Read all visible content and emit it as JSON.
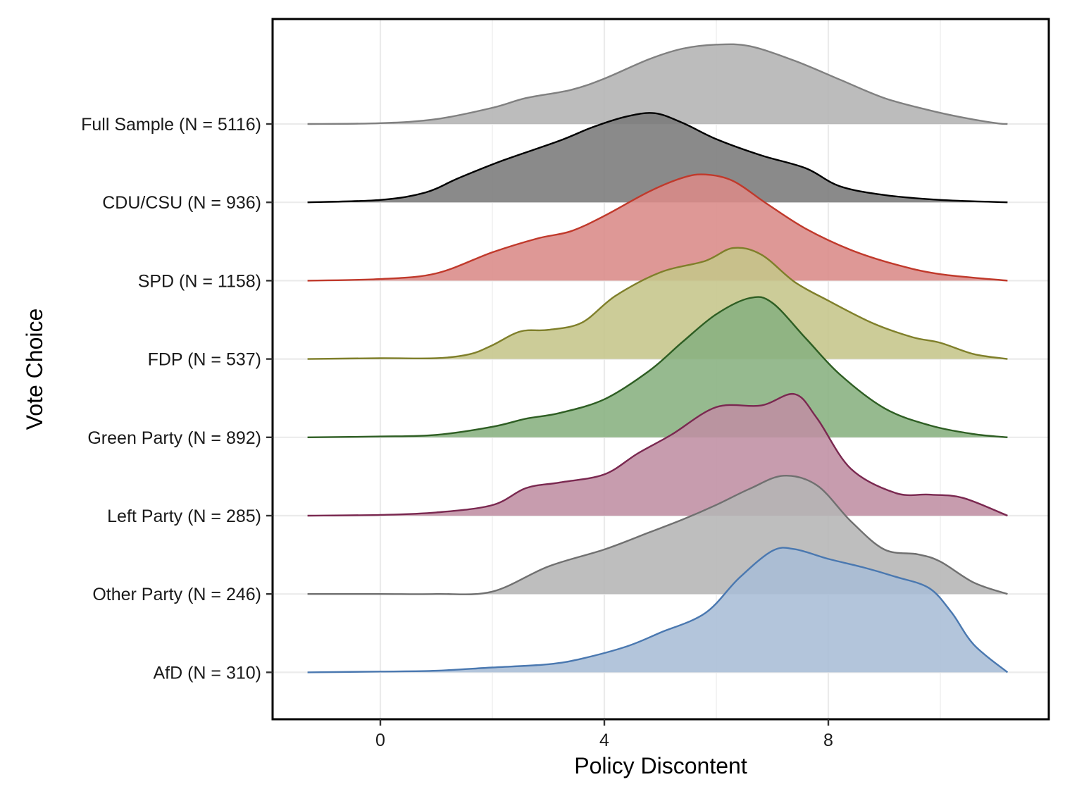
{
  "chart_data": {
    "type": "ridgeline",
    "title": "",
    "xlabel": "Policy Discontent",
    "ylabel": "Vote Choice",
    "x_ticks": [
      0,
      4,
      8
    ],
    "xlim": [
      -1.9,
      11.7
    ],
    "x_range": [
      -1.3,
      11.2
    ],
    "grid": true,
    "series": [
      {
        "name": "Full Sample (N = 5116)",
        "color": "#808080",
        "fill": "#b3b3b3",
        "points": [
          [
            -1.3,
            0
          ],
          [
            0,
            0.01
          ],
          [
            1,
            0.06
          ],
          [
            2,
            0.2
          ],
          [
            2.6,
            0.32
          ],
          [
            3.4,
            0.42
          ],
          [
            4,
            0.56
          ],
          [
            4.8,
            0.8
          ],
          [
            5.4,
            0.93
          ],
          [
            6,
            0.98
          ],
          [
            6.6,
            0.96
          ],
          [
            7.4,
            0.78
          ],
          [
            8.2,
            0.55
          ],
          [
            9,
            0.32
          ],
          [
            9.8,
            0.17
          ],
          [
            10.4,
            0.08
          ],
          [
            11,
            0.01
          ],
          [
            11.2,
            0
          ]
        ]
      },
      {
        "name": "CDU/CSU (N = 936)",
        "color": "#000000",
        "fill": "#7a7a7a",
        "points": [
          [
            -1.3,
            0
          ],
          [
            0,
            0.03
          ],
          [
            0.8,
            0.12
          ],
          [
            1.4,
            0.3
          ],
          [
            2.2,
            0.52
          ],
          [
            3.2,
            0.76
          ],
          [
            3.8,
            0.93
          ],
          [
            4.4,
            1.06
          ],
          [
            4.9,
            1.1
          ],
          [
            5.4,
            0.98
          ],
          [
            6,
            0.78
          ],
          [
            6.8,
            0.58
          ],
          [
            7.6,
            0.42
          ],
          [
            8.2,
            0.2
          ],
          [
            9,
            0.09
          ],
          [
            10,
            0.03
          ],
          [
            11.2,
            0
          ]
        ]
      },
      {
        "name": "SPD (N = 1158)",
        "color": "#c0392b",
        "fill": "#d98a88",
        "points": [
          [
            -1.3,
            0
          ],
          [
            0,
            0.02
          ],
          [
            1,
            0.09
          ],
          [
            2,
            0.35
          ],
          [
            2.8,
            0.52
          ],
          [
            3.4,
            0.61
          ],
          [
            4,
            0.8
          ],
          [
            4.8,
            1.1
          ],
          [
            5.4,
            1.27
          ],
          [
            5.8,
            1.31
          ],
          [
            6.3,
            1.23
          ],
          [
            6.9,
            0.95
          ],
          [
            7.6,
            0.64
          ],
          [
            8.4,
            0.38
          ],
          [
            9.2,
            0.2
          ],
          [
            10,
            0.08
          ],
          [
            11.2,
            0
          ]
        ]
      },
      {
        "name": "FDP (N = 537)",
        "color": "#7f7f2a",
        "fill": "#c5c58a",
        "points": [
          [
            -1.3,
            0
          ],
          [
            0,
            0.01
          ],
          [
            1,
            0.01
          ],
          [
            1.6,
            0.06
          ],
          [
            2,
            0.17
          ],
          [
            2.5,
            0.34
          ],
          [
            3,
            0.36
          ],
          [
            3.6,
            0.45
          ],
          [
            4.2,
            0.78
          ],
          [
            5,
            1.07
          ],
          [
            5.8,
            1.21
          ],
          [
            6.3,
            1.37
          ],
          [
            6.8,
            1.29
          ],
          [
            7.4,
            0.95
          ],
          [
            8,
            0.72
          ],
          [
            8.8,
            0.44
          ],
          [
            9.5,
            0.27
          ],
          [
            10,
            0.2
          ],
          [
            10.6,
            0.06
          ],
          [
            11.2,
            0
          ]
        ]
      },
      {
        "name": "Green Party (N = 892)",
        "color": "#2e5e23",
        "fill": "#87b17f",
        "points": [
          [
            -1.3,
            0
          ],
          [
            0,
            0.01
          ],
          [
            1,
            0.03
          ],
          [
            2,
            0.13
          ],
          [
            2.6,
            0.23
          ],
          [
            3.2,
            0.3
          ],
          [
            4,
            0.47
          ],
          [
            4.8,
            0.82
          ],
          [
            5.4,
            1.18
          ],
          [
            6,
            1.52
          ],
          [
            6.6,
            1.72
          ],
          [
            7,
            1.66
          ],
          [
            7.6,
            1.22
          ],
          [
            8.2,
            0.78
          ],
          [
            9,
            0.36
          ],
          [
            9.8,
            0.15
          ],
          [
            10.6,
            0.04
          ],
          [
            11.2,
            0
          ]
        ]
      },
      {
        "name": "Left Party (N = 285)",
        "color": "#7a2850",
        "fill": "#bf8ea3",
        "points": [
          [
            -1.3,
            0
          ],
          [
            0,
            0.01
          ],
          [
            1,
            0.04
          ],
          [
            2,
            0.13
          ],
          [
            2.6,
            0.34
          ],
          [
            3.2,
            0.41
          ],
          [
            4,
            0.51
          ],
          [
            4.6,
            0.77
          ],
          [
            5.2,
            1.0
          ],
          [
            6,
            1.34
          ],
          [
            6.8,
            1.36
          ],
          [
            7.4,
            1.5
          ],
          [
            7.8,
            1.2
          ],
          [
            8.4,
            0.58
          ],
          [
            9.2,
            0.28
          ],
          [
            9.8,
            0.26
          ],
          [
            10.4,
            0.22
          ],
          [
            11.2,
            0
          ]
        ]
      },
      {
        "name": "Other Party (N = 246)",
        "color": "#707070",
        "fill": "#b5b5b5",
        "points": [
          [
            -1.3,
            0
          ],
          [
            0,
            0
          ],
          [
            1,
            0
          ],
          [
            2,
            0.03
          ],
          [
            3,
            0.34
          ],
          [
            4,
            0.55
          ],
          [
            4.8,
            0.76
          ],
          [
            5.4,
            0.92
          ],
          [
            6,
            1.1
          ],
          [
            6.6,
            1.3
          ],
          [
            7.2,
            1.46
          ],
          [
            7.8,
            1.34
          ],
          [
            8.4,
            0.9
          ],
          [
            9,
            0.55
          ],
          [
            9.6,
            0.49
          ],
          [
            10,
            0.4
          ],
          [
            10.6,
            0.14
          ],
          [
            11.2,
            0
          ]
        ]
      },
      {
        "name": "AfD (N = 310)",
        "color": "#4a78b0",
        "fill": "#a8bdd6",
        "points": [
          [
            -1.3,
            0
          ],
          [
            0,
            0.01
          ],
          [
            1,
            0.02
          ],
          [
            2,
            0.06
          ],
          [
            3,
            0.1
          ],
          [
            3.6,
            0.17
          ],
          [
            4.4,
            0.32
          ],
          [
            5,
            0.49
          ],
          [
            5.8,
            0.73
          ],
          [
            6.4,
            1.16
          ],
          [
            7,
            1.5
          ],
          [
            7.4,
            1.52
          ],
          [
            8,
            1.4
          ],
          [
            8.6,
            1.3
          ],
          [
            9.2,
            1.18
          ],
          [
            9.8,
            1.04
          ],
          [
            10.2,
            0.74
          ],
          [
            10.6,
            0.34
          ],
          [
            11.2,
            0
          ]
        ]
      }
    ]
  }
}
